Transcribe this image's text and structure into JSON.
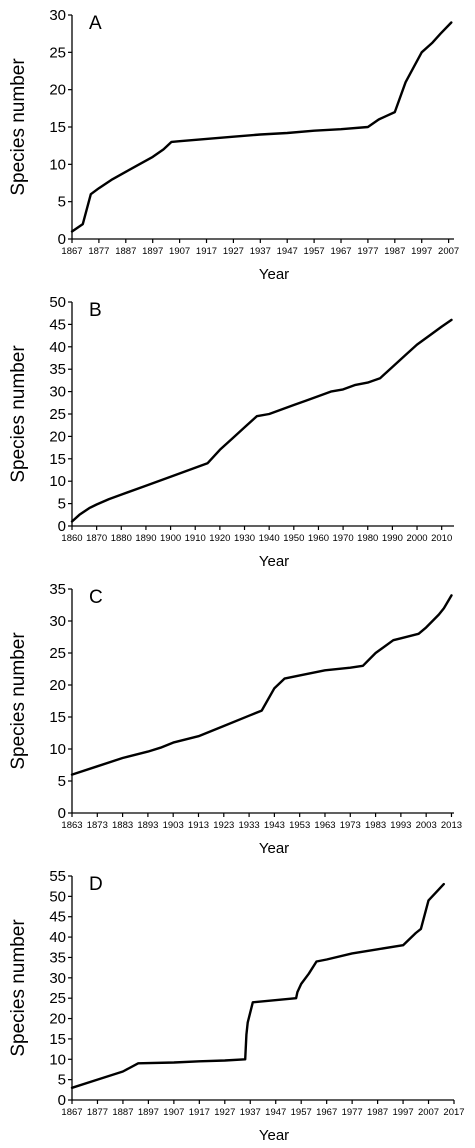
{
  "chart_data": [
    {
      "type": "line",
      "panel_label": "A",
      "xlabel": "Year",
      "ylabel": "Species number",
      "xlim": [
        1867,
        2009
      ],
      "ylim": [
        0,
        30
      ],
      "xticks": [
        1867,
        1877,
        1887,
        1897,
        1907,
        1917,
        1927,
        1937,
        1947,
        1957,
        1967,
        1977,
        1987,
        1997,
        2007
      ],
      "yticks": [
        0,
        5,
        10,
        15,
        20,
        25,
        30
      ],
      "series": [
        {
          "x": [
            1867,
            1871,
            1874,
            1877,
            1882,
            1887,
            1892,
            1897,
            1901,
            1904,
            1907,
            1917,
            1927,
            1937,
            1947,
            1957,
            1967,
            1977,
            1981,
            1984,
            1987,
            1991,
            1994,
            1997,
            2001,
            2004,
            2008
          ],
          "y": [
            1,
            2,
            6,
            6.8,
            8,
            9,
            10,
            11,
            12,
            13,
            13.1,
            13.4,
            13.7,
            14,
            14.2,
            14.5,
            14.7,
            15,
            16,
            16.5,
            17,
            21,
            23,
            25,
            26.3,
            27.5,
            29
          ]
        }
      ]
    },
    {
      "type": "line",
      "panel_label": "B",
      "xlabel": "Year",
      "ylabel": "Species number",
      "xlim": [
        1860,
        2015
      ],
      "ylim": [
        0,
        50
      ],
      "xticks": [
        1860,
        1870,
        1880,
        1890,
        1900,
        1910,
        1920,
        1930,
        1940,
        1950,
        1960,
        1970,
        1980,
        1990,
        2000,
        2010
      ],
      "yticks": [
        0,
        5,
        10,
        15,
        20,
        25,
        30,
        35,
        40,
        45,
        50
      ],
      "series": [
        {
          "x": [
            1860,
            1863,
            1867,
            1870,
            1875,
            1880,
            1890,
            1900,
            1910,
            1915,
            1920,
            1925,
            1930,
            1935,
            1940,
            1945,
            1950,
            1955,
            1960,
            1965,
            1970,
            1975,
            1980,
            1985,
            1990,
            1995,
            2000,
            2005,
            2010,
            2014
          ],
          "y": [
            1,
            2.5,
            4,
            4.8,
            6,
            7,
            9,
            11,
            13,
            14,
            17,
            19.5,
            22,
            24.5,
            25,
            26,
            27,
            28,
            29,
            30,
            30.5,
            31.5,
            32,
            33,
            35.5,
            38,
            40.5,
            42.5,
            44.5,
            46
          ]
        }
      ]
    },
    {
      "type": "line",
      "panel_label": "C",
      "xlabel": "Year",
      "ylabel": "Species number",
      "xlim": [
        1863,
        2014
      ],
      "ylim": [
        0,
        35
      ],
      "xticks": [
        1863,
        1873,
        1883,
        1893,
        1903,
        1913,
        1923,
        1933,
        1943,
        1953,
        1963,
        1973,
        1983,
        1993,
        2003,
        2013
      ],
      "yticks": [
        0,
        5,
        10,
        15,
        20,
        25,
        30,
        35
      ],
      "series": [
        {
          "x": [
            1863,
            1873,
            1883,
            1893,
            1898,
            1903,
            1913,
            1923,
            1933,
            1938,
            1943,
            1947,
            1953,
            1963,
            1973,
            1978,
            1983,
            1990,
            1993,
            2000,
            2003,
            2008,
            2010,
            2013
          ],
          "y": [
            6,
            7.3,
            8.6,
            9.6,
            10.2,
            11,
            12,
            13.6,
            15.2,
            16,
            19.5,
            21,
            21.5,
            22.3,
            22.7,
            23,
            25,
            27,
            27.3,
            28,
            29,
            31,
            32,
            34
          ]
        }
      ]
    },
    {
      "type": "line",
      "panel_label": "D",
      "xlabel": "Year",
      "ylabel": "Species number",
      "xlim": [
        1867,
        2017
      ],
      "ylim": [
        0,
        55
      ],
      "xticks": [
        1867,
        1877,
        1887,
        1897,
        1907,
        1917,
        1927,
        1937,
        1947,
        1957,
        1967,
        1977,
        1987,
        1997,
        2007,
        2017
      ],
      "yticks": [
        0,
        5,
        10,
        15,
        20,
        25,
        30,
        35,
        40,
        45,
        50,
        55
      ],
      "series": [
        {
          "x": [
            1867,
            1877,
            1887,
            1893,
            1907,
            1917,
            1927,
            1935,
            1935.5,
            1936,
            1938,
            1955,
            1955.5,
            1957,
            1960,
            1963,
            1967,
            1977,
            1987,
            1997,
            2002,
            2004,
            2007,
            2013
          ],
          "y": [
            3,
            5,
            7,
            9,
            9.2,
            9.5,
            9.7,
            10,
            16,
            19,
            24,
            25,
            26.5,
            28.5,
            31,
            34,
            34.5,
            36,
            37,
            38,
            41,
            42,
            49,
            53
          ]
        }
      ]
    }
  ]
}
